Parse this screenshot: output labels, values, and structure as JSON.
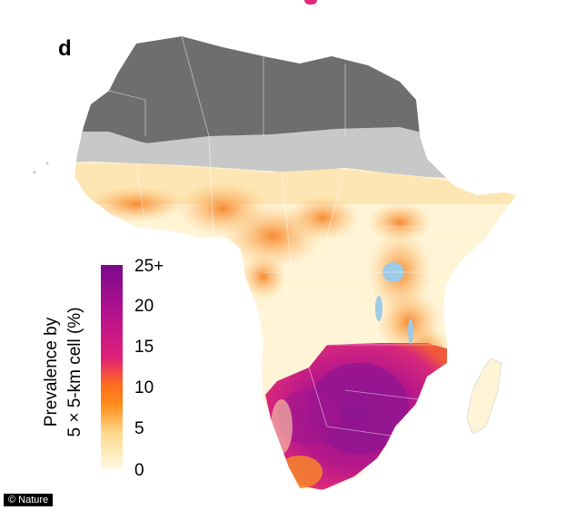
{
  "panel_label": "d",
  "legend": {
    "title_line1": "Prevalence by",
    "title_line2": "5 × 5-km cell (%)",
    "ticks": [
      "25+",
      "20",
      "15",
      "10",
      "5",
      "0"
    ],
    "colors": [
      "#fffbe6",
      "#ffd98c",
      "#ff8c1a",
      "#ff5a1f",
      "#e0207a",
      "#b0118f",
      "#7a0a8c"
    ]
  },
  "credit": "© Nature",
  "map_colors": {
    "north_dark": "#6e6e6e",
    "sahel_light": "#c8c8c8",
    "low": "#fff4d6",
    "mid": "#fbbf6d",
    "orange": "#f7913a",
    "high": "#d8287c",
    "very_high": "#8e1591",
    "water": "#9ecbe6"
  }
}
